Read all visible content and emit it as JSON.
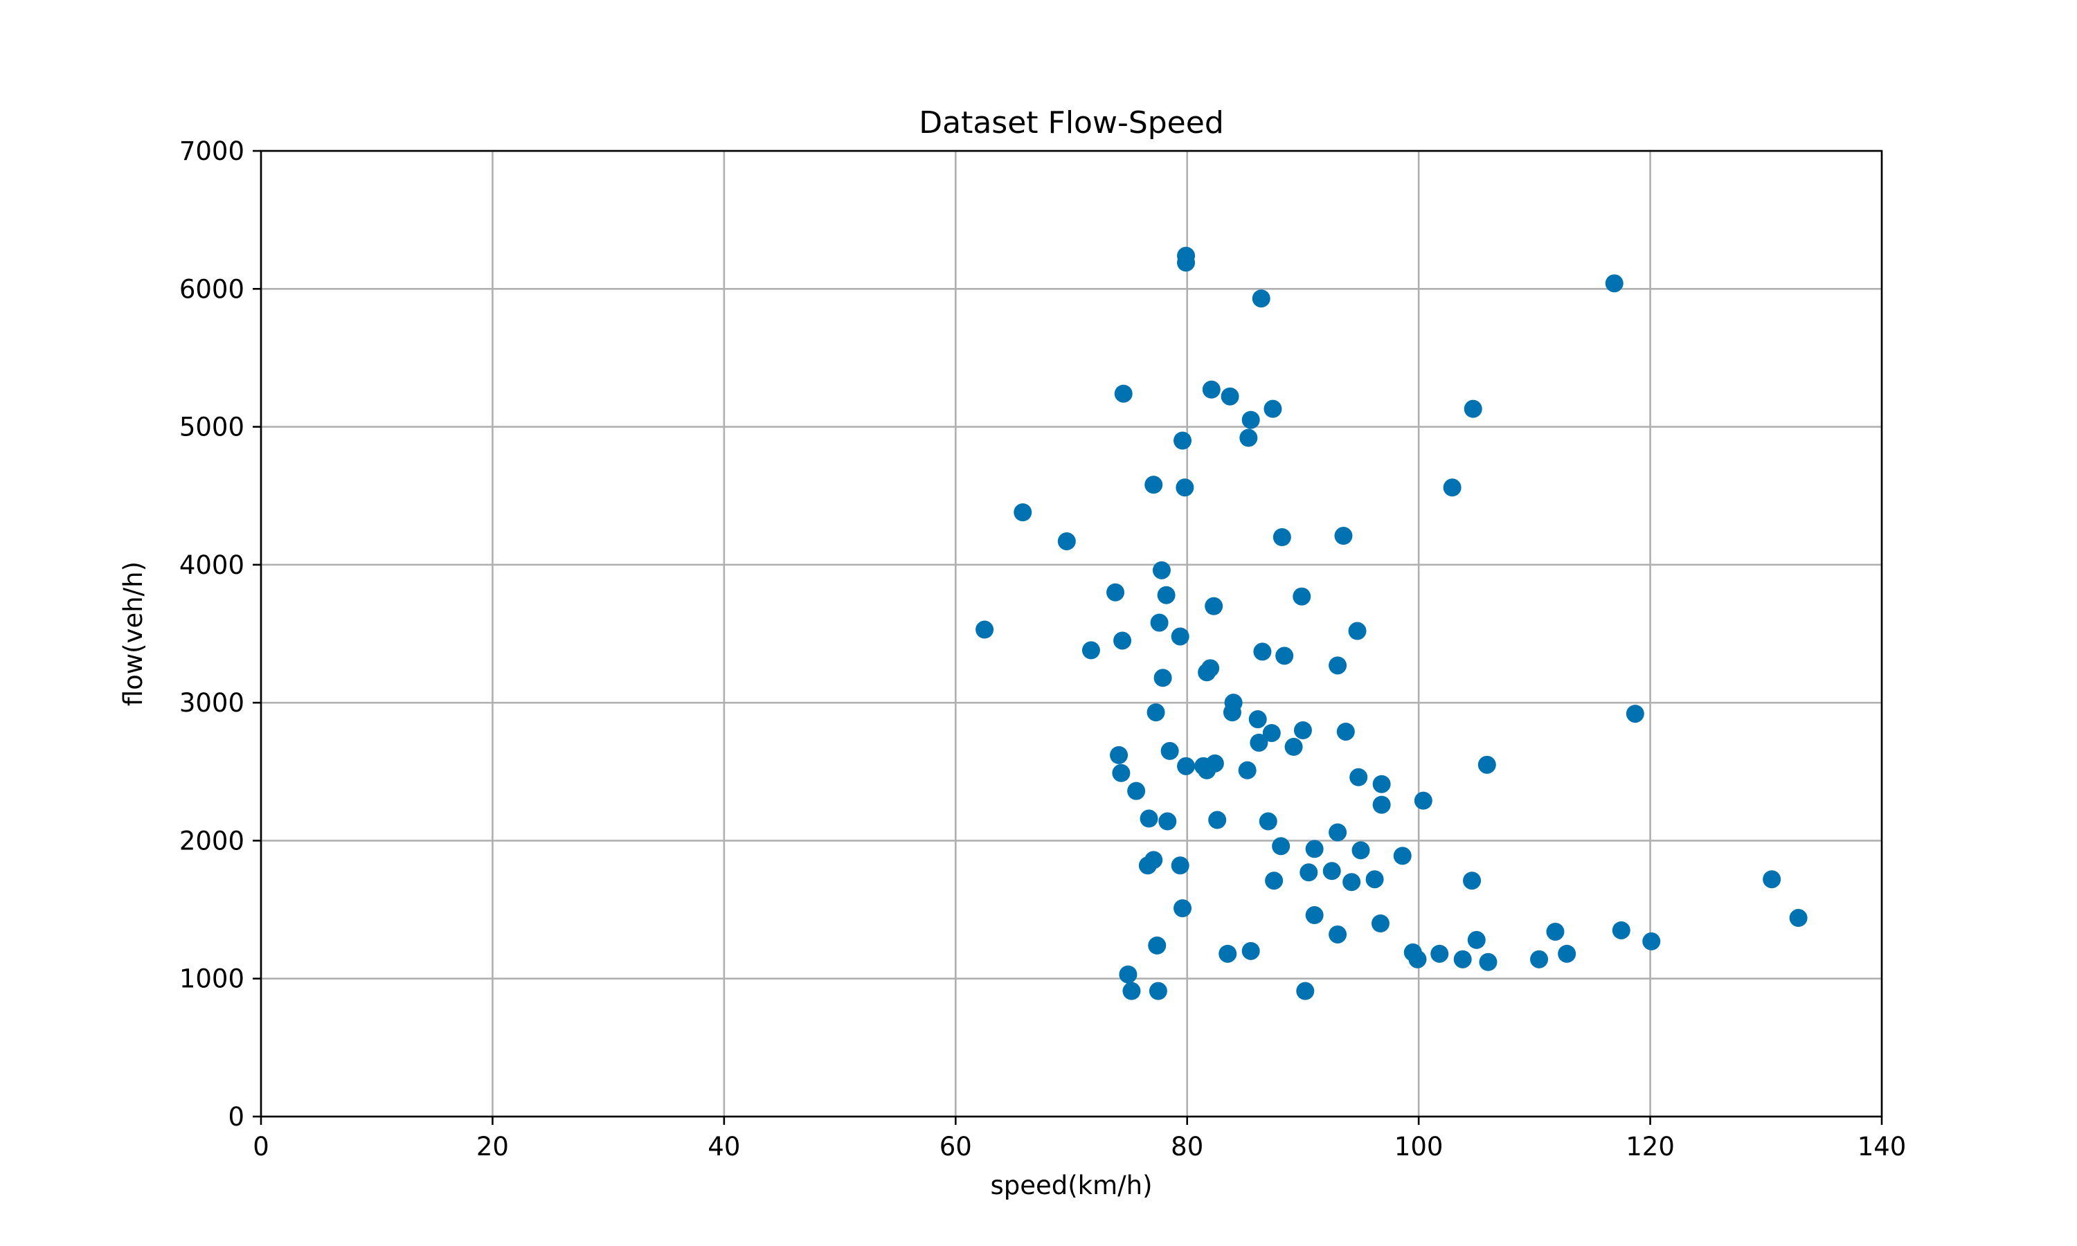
{
  "chart_data": {
    "type": "scatter",
    "title": "Dataset Flow-Speed",
    "xlabel": "speed(km/h)",
    "ylabel": "flow(veh/h)",
    "xlim": [
      0,
      140
    ],
    "ylim": [
      0,
      7000
    ],
    "xticks": [
      0,
      20,
      40,
      60,
      80,
      100,
      120,
      140
    ],
    "yticks": [
      0,
      1000,
      2000,
      3000,
      4000,
      5000,
      6000,
      7000
    ],
    "grid": true,
    "marker_color": "#0072b2",
    "points": [
      [
        62.5,
        3530
      ],
      [
        65.8,
        4380
      ],
      [
        69.6,
        4170
      ],
      [
        71.7,
        3380
      ],
      [
        73.8,
        3800
      ],
      [
        74.1,
        2620
      ],
      [
        74.3,
        2490
      ],
      [
        74.4,
        3450
      ],
      [
        74.5,
        5240
      ],
      [
        74.9,
        1030
      ],
      [
        75.2,
        910
      ],
      [
        75.6,
        2360
      ],
      [
        76.6,
        1820
      ],
      [
        76.7,
        2160
      ],
      [
        77.1,
        1860
      ],
      [
        77.1,
        4580
      ],
      [
        77.3,
        2930
      ],
      [
        77.4,
        1240
      ],
      [
        77.5,
        910
      ],
      [
        77.6,
        3580
      ],
      [
        77.8,
        3960
      ],
      [
        77.9,
        3180
      ],
      [
        78.2,
        3780
      ],
      [
        78.3,
        2140
      ],
      [
        78.5,
        2650
      ],
      [
        79.4,
        1820
      ],
      [
        79.4,
        3480
      ],
      [
        79.6,
        1510
      ],
      [
        79.6,
        4900
      ],
      [
        79.8,
        4560
      ],
      [
        79.9,
        2540
      ],
      [
        79.9,
        6190
      ],
      [
        79.9,
        6240
      ],
      [
        81.4,
        2540
      ],
      [
        81.7,
        2510
      ],
      [
        81.7,
        3220
      ],
      [
        82.0,
        3250
      ],
      [
        82.1,
        5270
      ],
      [
        82.3,
        3700
      ],
      [
        82.4,
        2560
      ],
      [
        82.6,
        2150
      ],
      [
        83.5,
        1180
      ],
      [
        83.7,
        5220
      ],
      [
        83.9,
        2930
      ],
      [
        84.0,
        3000
      ],
      [
        85.2,
        2510
      ],
      [
        85.3,
        4920
      ],
      [
        85.5,
        5050
      ],
      [
        85.5,
        1200
      ],
      [
        86.1,
        2880
      ],
      [
        86.2,
        2710
      ],
      [
        86.4,
        5930
      ],
      [
        86.5,
        3370
      ],
      [
        87.0,
        2140
      ],
      [
        87.3,
        2780
      ],
      [
        87.4,
        5130
      ],
      [
        87.5,
        1710
      ],
      [
        88.1,
        1960
      ],
      [
        88.2,
        4200
      ],
      [
        88.4,
        3340
      ],
      [
        89.2,
        2680
      ],
      [
        89.9,
        3770
      ],
      [
        90.0,
        2800
      ],
      [
        90.2,
        910
      ],
      [
        90.5,
        1770
      ],
      [
        91.0,
        1460
      ],
      [
        91.0,
        1940
      ],
      [
        92.5,
        1780
      ],
      [
        93.0,
        1320
      ],
      [
        93.0,
        2060
      ],
      [
        93.0,
        3270
      ],
      [
        93.5,
        4210
      ],
      [
        93.7,
        2790
      ],
      [
        94.2,
        1700
      ],
      [
        94.7,
        3520
      ],
      [
        94.8,
        2460
      ],
      [
        95.0,
        1930
      ],
      [
        96.2,
        1720
      ],
      [
        96.7,
        1400
      ],
      [
        96.8,
        2260
      ],
      [
        96.8,
        2410
      ],
      [
        98.6,
        1890
      ],
      [
        99.5,
        1190
      ],
      [
        99.9,
        1140
      ],
      [
        100.4,
        2290
      ],
      [
        101.8,
        1180
      ],
      [
        102.9,
        4560
      ],
      [
        103.8,
        1140
      ],
      [
        104.6,
        1710
      ],
      [
        104.7,
        5130
      ],
      [
        105.0,
        1280
      ],
      [
        105.9,
        2550
      ],
      [
        106.0,
        1120
      ],
      [
        110.4,
        1140
      ],
      [
        111.8,
        1340
      ],
      [
        112.8,
        1180
      ],
      [
        116.9,
        6040
      ],
      [
        117.5,
        1350
      ],
      [
        118.7,
        2920
      ],
      [
        120.1,
        1270
      ],
      [
        130.5,
        1720
      ],
      [
        132.8,
        1440
      ]
    ]
  }
}
